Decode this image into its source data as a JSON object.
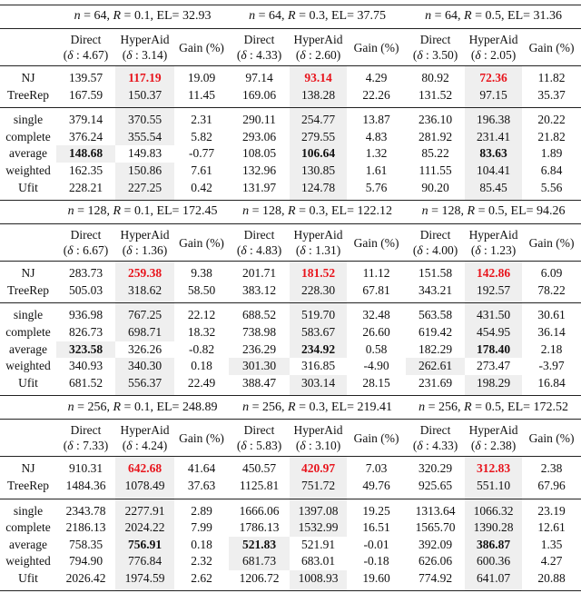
{
  "column_headers": {
    "direct": "Direct",
    "hyperaid": "HyperAid",
    "gain": "Gain (%)"
  },
  "blocks": [
    {
      "settings": [
        {
          "n": "64",
          "R": "0.1",
          "EL": "32.93",
          "delta_direct": "4.67",
          "delta_hyperaid": "3.14"
        },
        {
          "n": "64",
          "R": "0.3",
          "EL": "37.75",
          "delta_direct": "4.33",
          "delta_hyperaid": "2.60"
        },
        {
          "n": "64",
          "R": "0.5",
          "EL": "31.36",
          "delta_direct": "3.50",
          "delta_hyperaid": "2.05"
        }
      ],
      "groups": [
        [
          {
            "method": "NJ",
            "emphasis": "red",
            "values": [
              [
                "139.57",
                "117.19",
                "19.09"
              ],
              [
                "97.14",
                "93.14",
                "4.29"
              ],
              [
                "80.92",
                "72.36",
                "11.82"
              ]
            ]
          },
          {
            "method": "TreeRep",
            "values": [
              [
                "167.59",
                "150.37",
                "11.45"
              ],
              [
                "169.06",
                "138.28",
                "22.26"
              ],
              [
                "131.52",
                "97.15",
                "35.37"
              ]
            ]
          }
        ],
        [
          {
            "method": "single",
            "values": [
              [
                "379.14",
                "370.55",
                "2.31"
              ],
              [
                "290.11",
                "254.77",
                "13.87"
              ],
              [
                "236.10",
                "196.38",
                "20.22"
              ]
            ]
          },
          {
            "method": "complete",
            "values": [
              [
                "376.24",
                "355.54",
                "5.82"
              ],
              [
                "293.06",
                "279.55",
                "4.83"
              ],
              [
                "281.92",
                "231.41",
                "21.82"
              ]
            ]
          },
          {
            "method": "average",
            "emphasis": "bold",
            "values": [
              [
                "148.68",
                "149.83",
                "-0.77"
              ],
              [
                "108.05",
                "106.64",
                "1.32"
              ],
              [
                "85.22",
                "83.63",
                "1.89"
              ]
            ]
          },
          {
            "method": "weighted",
            "values": [
              [
                "162.35",
                "150.86",
                "7.61"
              ],
              [
                "132.96",
                "130.85",
                "1.61"
              ],
              [
                "111.55",
                "104.41",
                "6.84"
              ]
            ]
          },
          {
            "method": "Ufit",
            "values": [
              [
                "228.21",
                "227.25",
                "0.42"
              ],
              [
                "131.97",
                "124.78",
                "5.76"
              ],
              [
                "90.20",
                "85.45",
                "5.56"
              ]
            ]
          }
        ]
      ]
    },
    {
      "settings": [
        {
          "n": "128",
          "R": "0.1",
          "EL": "172.45",
          "delta_direct": "6.67",
          "delta_hyperaid": "1.36"
        },
        {
          "n": "128",
          "R": "0.3",
          "EL": "122.12",
          "delta_direct": "4.83",
          "delta_hyperaid": "1.31"
        },
        {
          "n": "128",
          "R": "0.5",
          "EL": "94.26",
          "delta_direct": "4.00",
          "delta_hyperaid": "1.23"
        }
      ],
      "groups": [
        [
          {
            "method": "NJ",
            "emphasis": "red",
            "values": [
              [
                "283.73",
                "259.38",
                "9.38"
              ],
              [
                "201.71",
                "181.52",
                "11.12"
              ],
              [
                "151.58",
                "142.86",
                "6.09"
              ]
            ]
          },
          {
            "method": "TreeRep",
            "values": [
              [
                "505.03",
                "318.62",
                "58.50"
              ],
              [
                "383.12",
                "228.30",
                "67.81"
              ],
              [
                "343.21",
                "192.57",
                "78.22"
              ]
            ]
          }
        ],
        [
          {
            "method": "single",
            "values": [
              [
                "936.98",
                "767.25",
                "22.12"
              ],
              [
                "688.52",
                "519.70",
                "32.48"
              ],
              [
                "563.58",
                "431.50",
                "30.61"
              ]
            ]
          },
          {
            "method": "complete",
            "values": [
              [
                "826.73",
                "698.71",
                "18.32"
              ],
              [
                "738.98",
                "583.67",
                "26.60"
              ],
              [
                "619.42",
                "454.95",
                "36.14"
              ]
            ]
          },
          {
            "method": "average",
            "emphasis": "bold",
            "values": [
              [
                "323.58",
                "326.26",
                "-0.82"
              ],
              [
                "236.29",
                "234.92",
                "0.58"
              ],
              [
                "182.29",
                "178.40",
                "2.18"
              ]
            ]
          },
          {
            "method": "weighted",
            "values": [
              [
                "340.93",
                "340.30",
                "0.18"
              ],
              [
                "301.30",
                "316.85",
                "-4.90"
              ],
              [
                "262.61",
                "273.47",
                "-3.97"
              ]
            ]
          },
          {
            "method": "Ufit",
            "values": [
              [
                "681.52",
                "556.37",
                "22.49"
              ],
              [
                "388.47",
                "303.14",
                "28.15"
              ],
              [
                "231.69",
                "198.29",
                "16.84"
              ]
            ]
          }
        ]
      ]
    },
    {
      "settings": [
        {
          "n": "256",
          "R": "0.1",
          "EL": "248.89",
          "delta_direct": "7.33",
          "delta_hyperaid": "4.24"
        },
        {
          "n": "256",
          "R": "0.3",
          "EL": "219.41",
          "delta_direct": "5.83",
          "delta_hyperaid": "3.10"
        },
        {
          "n": "256",
          "R": "0.5",
          "EL": "172.52",
          "delta_direct": "4.33",
          "delta_hyperaid": "2.38"
        }
      ],
      "groups": [
        [
          {
            "method": "NJ",
            "emphasis": "red",
            "values": [
              [
                "910.31",
                "642.68",
                "41.64"
              ],
              [
                "450.57",
                "420.97",
                "7.03"
              ],
              [
                "320.29",
                "312.83",
                "2.38"
              ]
            ]
          },
          {
            "method": "TreeRep",
            "values": [
              [
                "1484.36",
                "1078.49",
                "37.63"
              ],
              [
                "1125.81",
                "751.72",
                "49.76"
              ],
              [
                "925.65",
                "551.10",
                "67.96"
              ]
            ]
          }
        ],
        [
          {
            "method": "single",
            "values": [
              [
                "2343.78",
                "2277.91",
                "2.89"
              ],
              [
                "1666.06",
                "1397.08",
                "19.25"
              ],
              [
                "1313.64",
                "1066.32",
                "23.19"
              ]
            ]
          },
          {
            "method": "complete",
            "values": [
              [
                "2186.13",
                "2024.22",
                "7.99"
              ],
              [
                "1786.13",
                "1532.99",
                "16.51"
              ],
              [
                "1565.70",
                "1390.28",
                "12.61"
              ]
            ]
          },
          {
            "method": "average",
            "emphasis": "bold",
            "values": [
              [
                "758.35",
                "756.91",
                "0.18"
              ],
              [
                "521.83",
                "521.91",
                "-0.01"
              ],
              [
                "392.09",
                "386.87",
                "1.35"
              ]
            ]
          },
          {
            "method": "weighted",
            "values": [
              [
                "794.90",
                "776.84",
                "2.32"
              ],
              [
                "681.73",
                "683.01",
                "-0.18"
              ],
              [
                "626.06",
                "600.36",
                "4.27"
              ]
            ]
          },
          {
            "method": "Ufit",
            "values": [
              [
                "2026.42",
                "1974.59",
                "2.62"
              ],
              [
                "1206.72",
                "1008.93",
                "19.60"
              ],
              [
                "774.92",
                "641.07",
                "20.88"
              ]
            ]
          }
        ]
      ]
    }
  ],
  "colors": {
    "best_red": "#e8141c",
    "shade": "#efefef"
  }
}
